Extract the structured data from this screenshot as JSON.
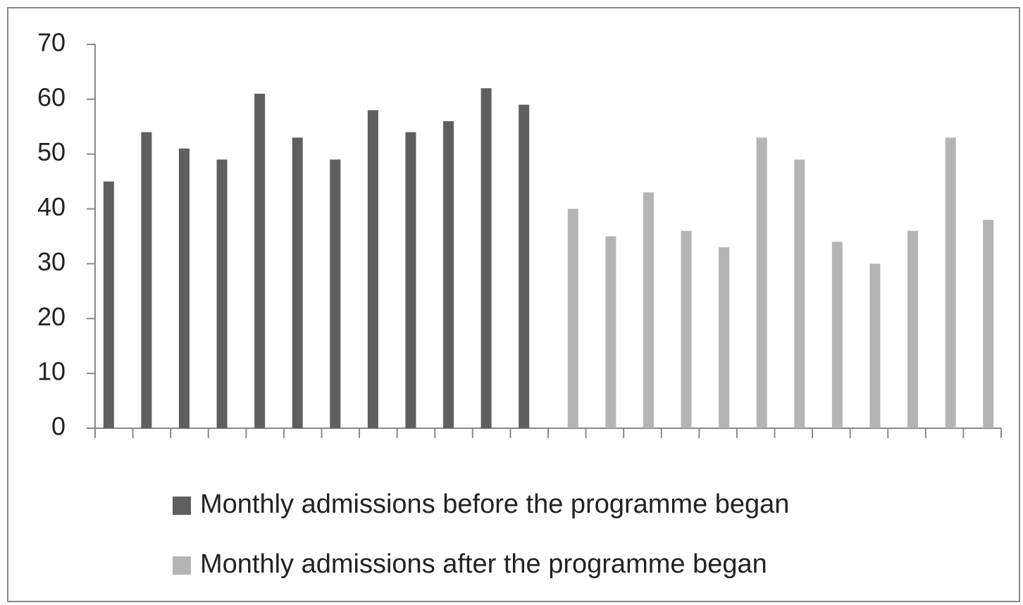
{
  "chart_data": {
    "type": "bar",
    "categories": [
      null,
      null,
      null,
      null,
      null,
      null,
      null,
      null,
      null,
      null,
      null,
      null,
      null,
      null,
      null,
      null,
      null,
      null,
      null,
      null,
      null,
      null,
      null,
      null
    ],
    "series": [
      {
        "name": "Monthly admissions before the programme began",
        "color": "#5f5f5f",
        "values": [
          45,
          54,
          51,
          49,
          61,
          53,
          49,
          58,
          54,
          56,
          62,
          59,
          null,
          null,
          null,
          null,
          null,
          null,
          null,
          null,
          null,
          null,
          null,
          null
        ]
      },
      {
        "name": "Monthly admissions after the programme began",
        "color": "#b4b4b4",
        "values": [
          null,
          null,
          null,
          null,
          null,
          null,
          null,
          null,
          null,
          null,
          null,
          null,
          40,
          35,
          43,
          36,
          33,
          53,
          49,
          34,
          30,
          36,
          53,
          38
        ]
      }
    ],
    "ylim": [
      0,
      70
    ],
    "yticks": [
      0,
      10,
      20,
      30,
      40,
      50,
      60,
      70
    ],
    "grid": false,
    "legend": "bottom"
  }
}
